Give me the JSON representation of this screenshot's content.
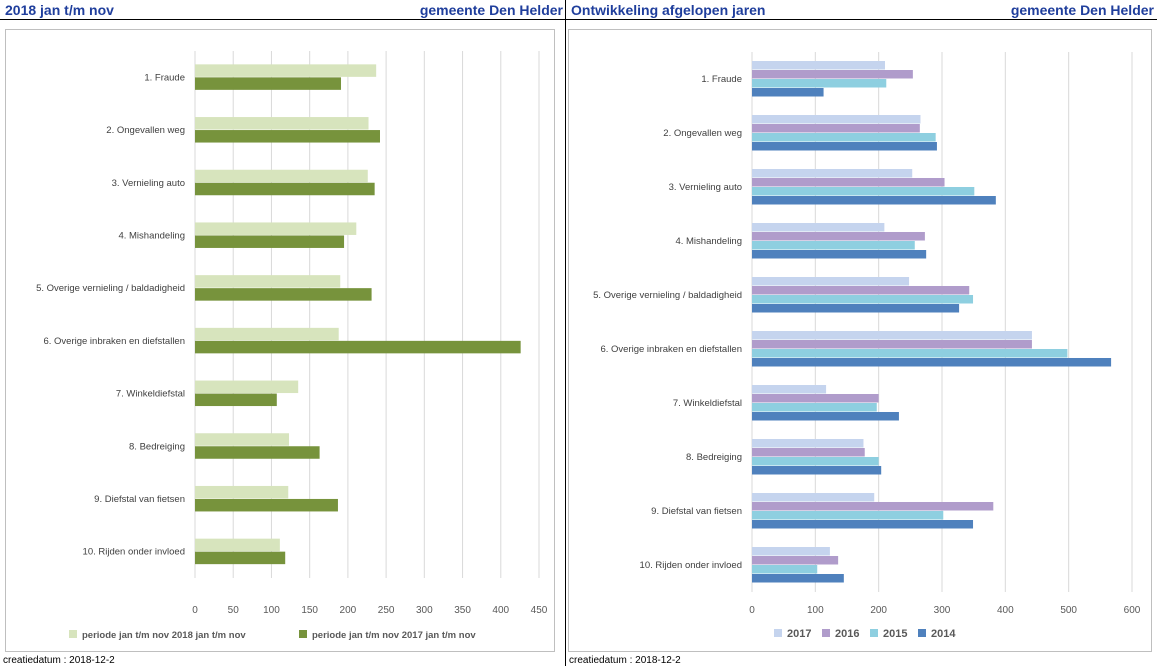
{
  "left_panel": {
    "title": "2018  jan t/m nov",
    "municipality": "gemeente Den Helder",
    "created": "creatiedatum : 2018-12-2"
  },
  "right_panel": {
    "title": "Ontwikkeling afgelopen jaren",
    "municipality": "gemeente Den Helder",
    "created": "creatiedatum : 2018-12-2"
  },
  "colors": {
    "header_text": "#1F3E9C",
    "s2018": "#D7E4BD",
    "s2017_left": "#77933C",
    "y2017": "#C5D4EE",
    "y2016": "#B09CCB",
    "y2015": "#8ECFE0",
    "y2014": "#4F81BD"
  },
  "chart_data": [
    {
      "type": "bar",
      "orientation": "horizontal",
      "categories": [
        "1. Fraude",
        "2. Ongevallen weg",
        "3. Vernieling auto",
        "4. Mishandeling",
        "5. Overige vernieling / baldadigheid",
        "6. Overige inbraken en diefstallen",
        "7. Winkeldiefstal",
        "8. Bedreiging",
        "9. Diefstal van fietsen",
        "10. Rijden onder invloed"
      ],
      "series": [
        {
          "name": "periode jan t/m nov 2018  jan t/m nov",
          "values": [
            237,
            227,
            226,
            211,
            190,
            188,
            135,
            123,
            122,
            111
          ]
        },
        {
          "name": "periode jan t/m nov 2017  jan t/m nov",
          "values": [
            191,
            242,
            235,
            195,
            231,
            426,
            107,
            163,
            187,
            118
          ]
        }
      ],
      "xlim": [
        0,
        450
      ],
      "xticks": [
        0,
        50,
        100,
        150,
        200,
        250,
        300,
        350,
        400,
        450
      ],
      "grid": true,
      "legend": "bottom"
    },
    {
      "type": "bar",
      "orientation": "horizontal",
      "categories": [
        "1. Fraude",
        "2. Ongevallen weg",
        "3. Vernieling auto",
        "4. Mishandeling",
        "5. Overige vernieling / baldadigheid",
        "6. Overige inbraken en diefstallen",
        "7. Winkeldiefstal",
        "8. Bedreiging",
        "9. Diefstal van fietsen",
        "10. Rijden onder invloed"
      ],
      "series": [
        {
          "name": "2017",
          "values": [
            210,
            266,
            253,
            209,
            248,
            442,
            117,
            176,
            193,
            123
          ]
        },
        {
          "name": "2016",
          "values": [
            254,
            265,
            304,
            273,
            343,
            442,
            200,
            178,
            381,
            136
          ]
        },
        {
          "name": "2015",
          "values": [
            212,
            290,
            351,
            257,
            349,
            498,
            197,
            200,
            302,
            103
          ]
        },
        {
          "name": "2014",
          "values": [
            113,
            292,
            385,
            275,
            327,
            567,
            232,
            204,
            349,
            145
          ]
        }
      ],
      "xlim": [
        0,
        600
      ],
      "xticks": [
        0,
        100,
        200,
        300,
        400,
        500,
        600
      ],
      "grid": true,
      "legend": "bottom"
    }
  ]
}
